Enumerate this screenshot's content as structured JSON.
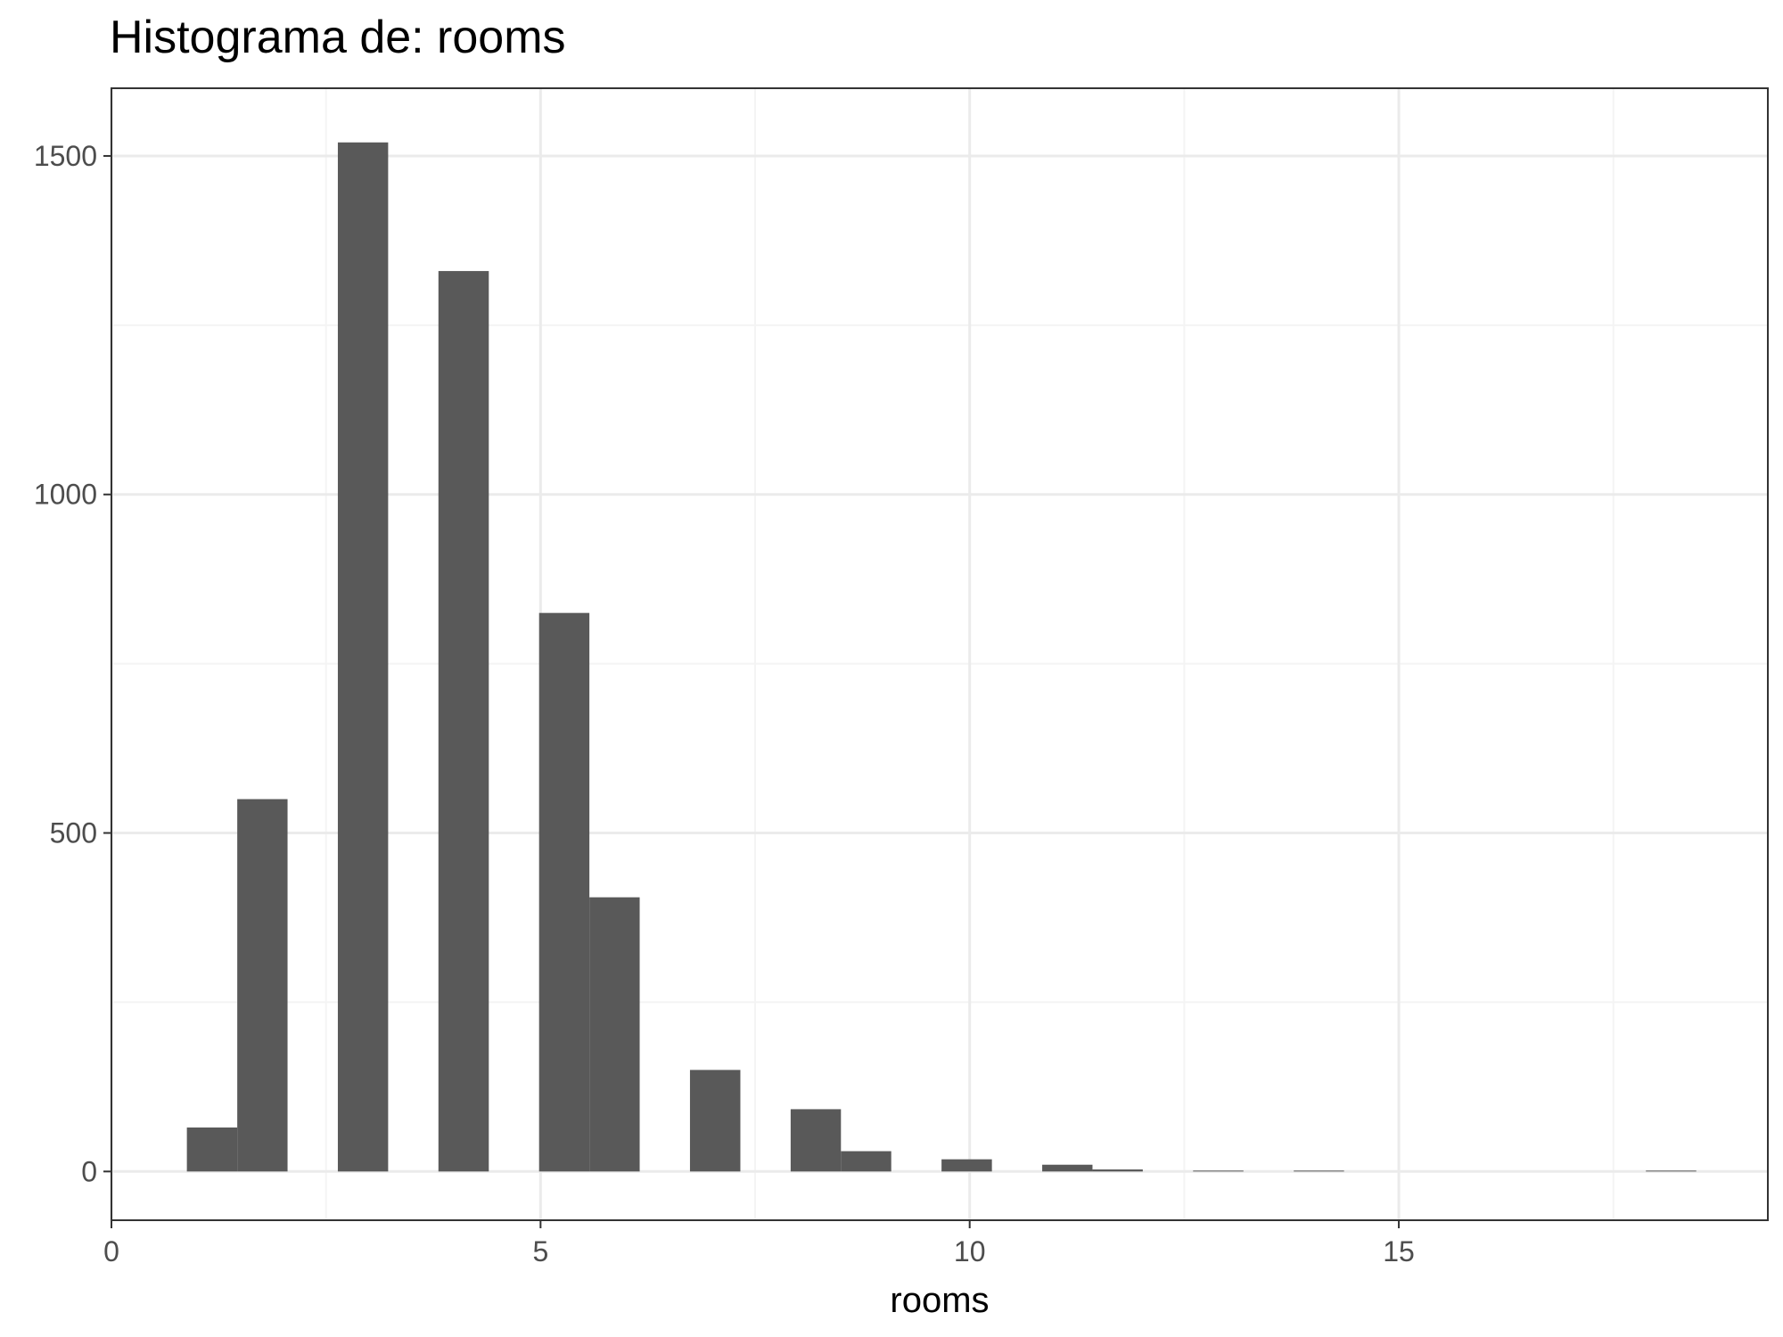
{
  "chart_data": {
    "type": "bar",
    "title": "Histograma de: rooms",
    "xlabel": "rooms",
    "ylabel": "",
    "xlim": [
      0,
      19.3
    ],
    "ylim": [
      -72,
      1600
    ],
    "x_ticks": [
      0,
      5,
      10,
      15
    ],
    "y_ticks": [
      0,
      500,
      1000,
      1500
    ],
    "grid": true,
    "bin_width": 0.5862,
    "bins": [
      {
        "x0": 0.879,
        "x1": 1.466,
        "count": 65
      },
      {
        "x0": 1.466,
        "x1": 2.052,
        "count": 550
      },
      {
        "x0": 2.638,
        "x1": 3.224,
        "count": 1520
      },
      {
        "x0": 3.81,
        "x1": 4.397,
        "count": 1330
      },
      {
        "x0": 4.983,
        "x1": 5.569,
        "count": 825
      },
      {
        "x0": 5.569,
        "x1": 6.155,
        "count": 405
      },
      {
        "x0": 6.741,
        "x1": 7.328,
        "count": 150
      },
      {
        "x0": 7.914,
        "x1": 8.5,
        "count": 92
      },
      {
        "x0": 8.5,
        "x1": 9.086,
        "count": 30
      },
      {
        "x0": 9.672,
        "x1": 10.259,
        "count": 18
      },
      {
        "x0": 10.845,
        "x1": 11.431,
        "count": 10
      },
      {
        "x0": 11.431,
        "x1": 12.017,
        "count": 3
      },
      {
        "x0": 12.603,
        "x1": 13.19,
        "count": 1
      },
      {
        "x0": 13.776,
        "x1": 14.362,
        "count": 1
      },
      {
        "x0": 17.879,
        "x1": 18.466,
        "count": 1
      }
    ],
    "colors": {
      "bar": "#595959",
      "grid_major": "#ebebeb",
      "grid_minor": "#f4f4f4",
      "panel_border": "#333333",
      "tick_text": "#4d4d4d"
    }
  }
}
